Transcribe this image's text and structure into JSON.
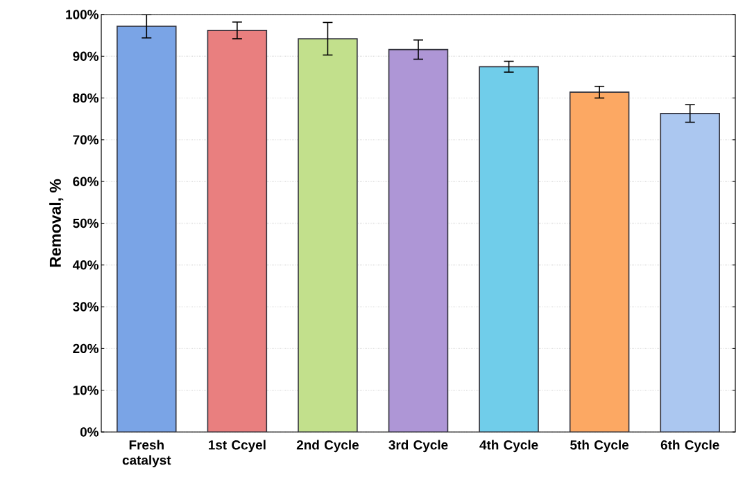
{
  "chart_data": {
    "type": "bar",
    "ylabel": "Removal,  %",
    "categories": [
      "Fresh catalyst",
      "1st Ccyel",
      "2nd Cycle",
      "3rd Cycle",
      "4th Cycle",
      "5th Cycle",
      "6th Cycle"
    ],
    "values": [
      97.2,
      96.2,
      94.2,
      91.6,
      87.5,
      81.4,
      76.3
    ],
    "errors": [
      2.8,
      2.0,
      3.9,
      2.3,
      1.3,
      1.4,
      2.1
    ],
    "colors": [
      "#7aa4e6",
      "#e97f7f",
      "#c2e08c",
      "#ae96d6",
      "#70cdea",
      "#fca863",
      "#abc7f0"
    ],
    "ylim": [
      0,
      100
    ],
    "yticks": [
      {
        "value": 0,
        "label": "0%"
      },
      {
        "value": 10,
        "label": "10%"
      },
      {
        "value": 20,
        "label": "20%"
      },
      {
        "value": 30,
        "label": "30%"
      },
      {
        "value": 40,
        "label": "40%"
      },
      {
        "value": 50,
        "label": "50%"
      },
      {
        "value": 60,
        "label": "60%"
      },
      {
        "value": 70,
        "label": "70%"
      },
      {
        "value": 80,
        "label": "80%"
      },
      {
        "value": 90,
        "label": "90%"
      },
      {
        "value": 100,
        "label": "100%"
      }
    ],
    "grid": "y"
  }
}
